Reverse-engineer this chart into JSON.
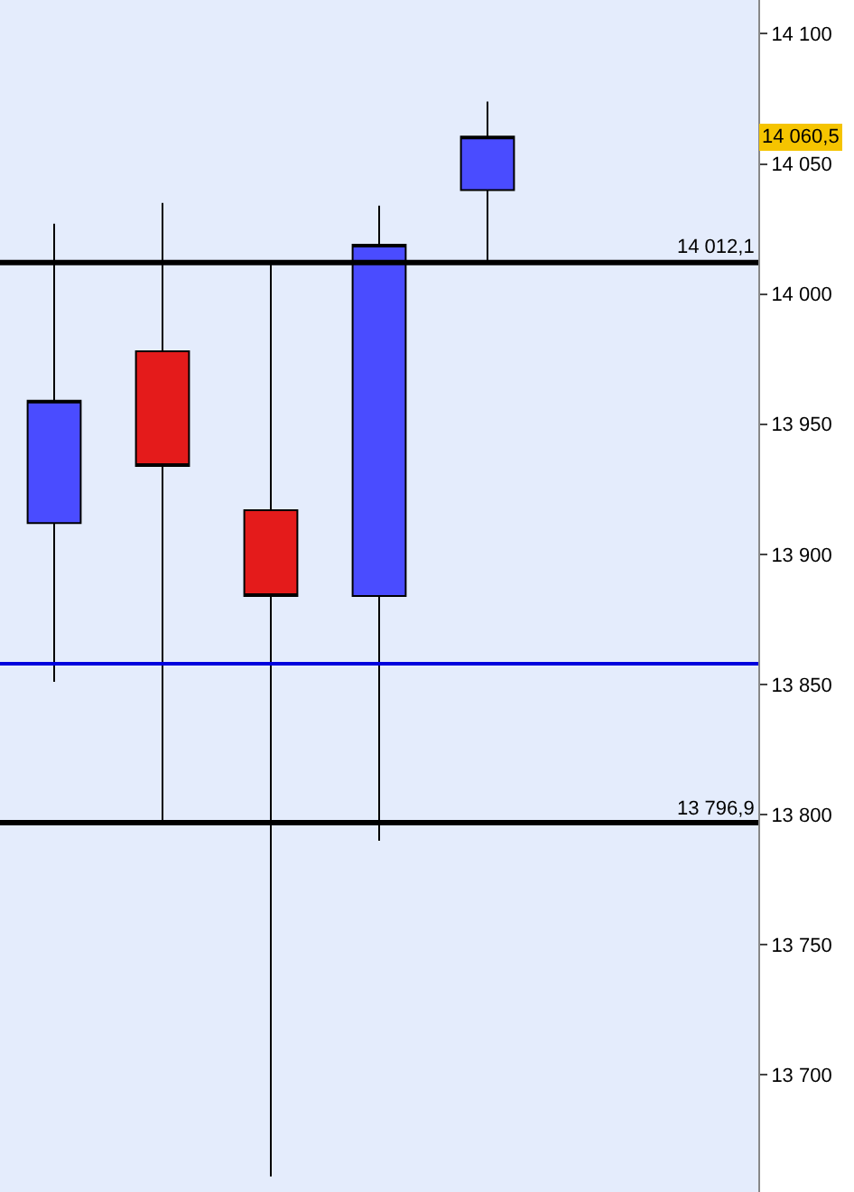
{
  "chart_data": {
    "type": "candlestick",
    "categories": [
      null,
      null,
      null,
      null,
      null,
      null,
      null
    ],
    "ohlc": [
      [
        13912,
        14027,
        13851,
        13959
      ],
      [
        13978,
        14035,
        13796.9,
        13934
      ],
      [
        13917,
        14012.1,
        13661,
        13884
      ],
      [
        13884,
        14034,
        13790,
        14019
      ],
      [
        14040,
        14074,
        14012.1,
        14060.5
      ],
      null,
      null
    ],
    "colors": [
      "#4a4cff",
      "#e41b1b",
      "#e41b1b",
      "#4a4cff",
      "#4a4cff",
      null,
      null
    ],
    "ylim": [
      13655,
      14113
    ],
    "yticks": [
      {
        "value": 13700,
        "label": "13 700"
      },
      {
        "value": 13750,
        "label": "13 750"
      },
      {
        "value": 13800,
        "label": "13 800"
      },
      {
        "value": 13850,
        "label": "13 850"
      },
      {
        "value": 13900,
        "label": "13 900"
      },
      {
        "value": 13950,
        "label": "13 950"
      },
      {
        "value": 14000,
        "label": "14 000"
      },
      {
        "value": 14050,
        "label": "14 050"
      },
      {
        "value": 14100,
        "label": "14 100"
      }
    ],
    "ref_lines": [
      {
        "axis": "y",
        "value": 14012.1,
        "label": "14 012,1",
        "color": "#000000"
      },
      {
        "axis": "y",
        "value": 13796.9,
        "label": "13 796,9",
        "color": "#000000"
      },
      {
        "axis": "y",
        "value": 13858,
        "color": "#0000dd"
      }
    ],
    "annotations": [
      "14 060,5"
    ],
    "grid": false
  }
}
